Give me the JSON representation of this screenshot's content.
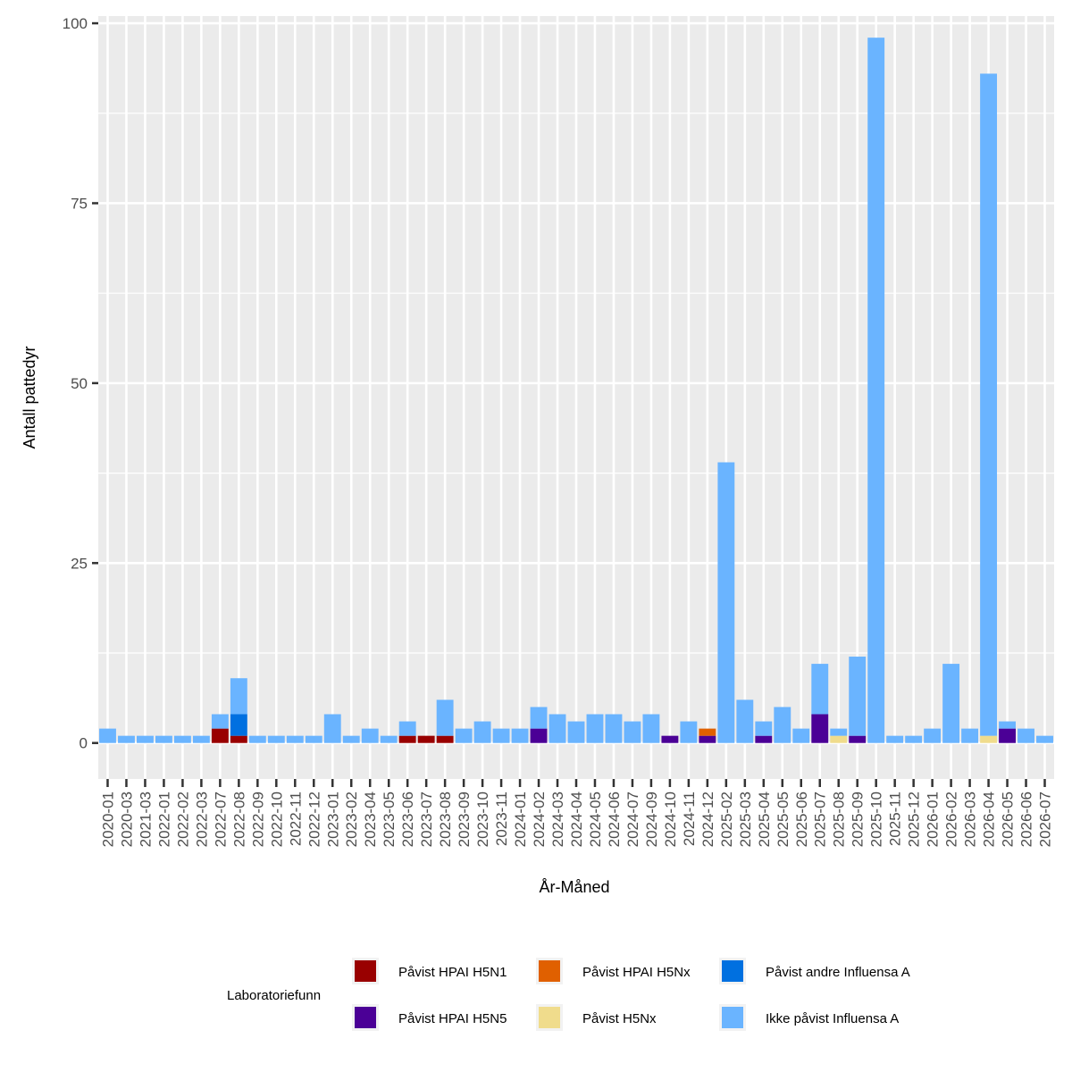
{
  "chart_data": {
    "type": "bar",
    "stacked": true,
    "xlabel": "År-Måned",
    "ylabel": "Antall pattedyr",
    "ylim": [
      -5,
      101
    ],
    "yticks": [
      0,
      25,
      50,
      75,
      100
    ],
    "grid": true,
    "legend_title": "Laboratoriefunn",
    "legend_position": "bottom",
    "categories": [
      "2020-01",
      "2020-03",
      "2021-03",
      "2022-01",
      "2022-02",
      "2022-03",
      "2022-07",
      "2022-08",
      "2022-09",
      "2022-10",
      "2022-11",
      "2022-12",
      "2023-01",
      "2023-02",
      "2023-04",
      "2023-05",
      "2023-06",
      "2023-07",
      "2023-08",
      "2023-09",
      "2023-10",
      "2023-11",
      "2024-01",
      "2024-02",
      "2024-03",
      "2024-04",
      "2024-05",
      "2024-06",
      "2024-07",
      "2024-09",
      "2024-10",
      "2024-11",
      "2024-12",
      "2025-02",
      "2025-03",
      "2025-04",
      "2025-05",
      "2025-06",
      "2025-07",
      "2025-08",
      "2025-09",
      "2025-10",
      "2025-11",
      "2025-12",
      "2026-01",
      "2026-02",
      "2026-03",
      "2026-04",
      "2026-05",
      "2026-06",
      "2026-07"
    ],
    "series": [
      {
        "name": "Påvist HPAI H5N1",
        "color": "#990000",
        "values": [
          0,
          0,
          0,
          0,
          0,
          0,
          2,
          1,
          0,
          0,
          0,
          0,
          0,
          0,
          0,
          0,
          1,
          1,
          1,
          0,
          0,
          0,
          0,
          0,
          0,
          0,
          0,
          0,
          0,
          0,
          0,
          0,
          0,
          0,
          0,
          0,
          0,
          0,
          0,
          0,
          0,
          0,
          0,
          0,
          0,
          0,
          0,
          0,
          0,
          0,
          0
        ]
      },
      {
        "name": "Påvist HPAI H5N5",
        "color": "#4b0096",
        "values": [
          0,
          0,
          0,
          0,
          0,
          0,
          0,
          0,
          0,
          0,
          0,
          0,
          0,
          0,
          0,
          0,
          0,
          0,
          0,
          0,
          0,
          0,
          0,
          2,
          0,
          0,
          0,
          0,
          0,
          0,
          1,
          0,
          1,
          0,
          0,
          1,
          0,
          0,
          4,
          0,
          1,
          0,
          0,
          0,
          0,
          0,
          0,
          0,
          2,
          0,
          0
        ]
      },
      {
        "name": "Påvist HPAI H5Nx",
        "color": "#e06000",
        "values": [
          0,
          0,
          0,
          0,
          0,
          0,
          0,
          0,
          0,
          0,
          0,
          0,
          0,
          0,
          0,
          0,
          0,
          0,
          0,
          0,
          0,
          0,
          0,
          0,
          0,
          0,
          0,
          0,
          0,
          0,
          0,
          0,
          1,
          0,
          0,
          0,
          0,
          0,
          0,
          0,
          0,
          0,
          0,
          0,
          0,
          0,
          0,
          0,
          0,
          0,
          0
        ]
      },
      {
        "name": "Påvist H5Nx",
        "color": "#f0dc8c",
        "values": [
          0,
          0,
          0,
          0,
          0,
          0,
          0,
          0,
          0,
          0,
          0,
          0,
          0,
          0,
          0,
          0,
          0,
          0,
          0,
          0,
          0,
          0,
          0,
          0,
          0,
          0,
          0,
          0,
          0,
          0,
          0,
          0,
          0,
          0,
          0,
          0,
          0,
          0,
          0,
          1,
          0,
          0,
          0,
          0,
          0,
          0,
          0,
          1,
          0,
          0,
          0
        ]
      },
      {
        "name": "Påvist andre Influensa A",
        "color": "#0070e0",
        "values": [
          0,
          0,
          0,
          0,
          0,
          0,
          0,
          3,
          0,
          0,
          0,
          0,
          0,
          0,
          0,
          0,
          0,
          0,
          0,
          0,
          0,
          0,
          0,
          0,
          0,
          0,
          0,
          0,
          0,
          0,
          0,
          0,
          0,
          0,
          0,
          0,
          0,
          0,
          0,
          0,
          0,
          0,
          0,
          0,
          0,
          0,
          0,
          0,
          0,
          0,
          0
        ]
      },
      {
        "name": "Ikke påvist Influensa A",
        "color": "#6ab4ff",
        "values": [
          2,
          1,
          1,
          1,
          1,
          1,
          2,
          5,
          1,
          1,
          1,
          1,
          4,
          1,
          2,
          1,
          2,
          0,
          5,
          2,
          3,
          2,
          2,
          3,
          4,
          3,
          4,
          4,
          3,
          4,
          0,
          3,
          0,
          39,
          6,
          2,
          5,
          2,
          7,
          1,
          11,
          98,
          1,
          1,
          2,
          11,
          2,
          92,
          1,
          2,
          1
        ]
      }
    ]
  }
}
